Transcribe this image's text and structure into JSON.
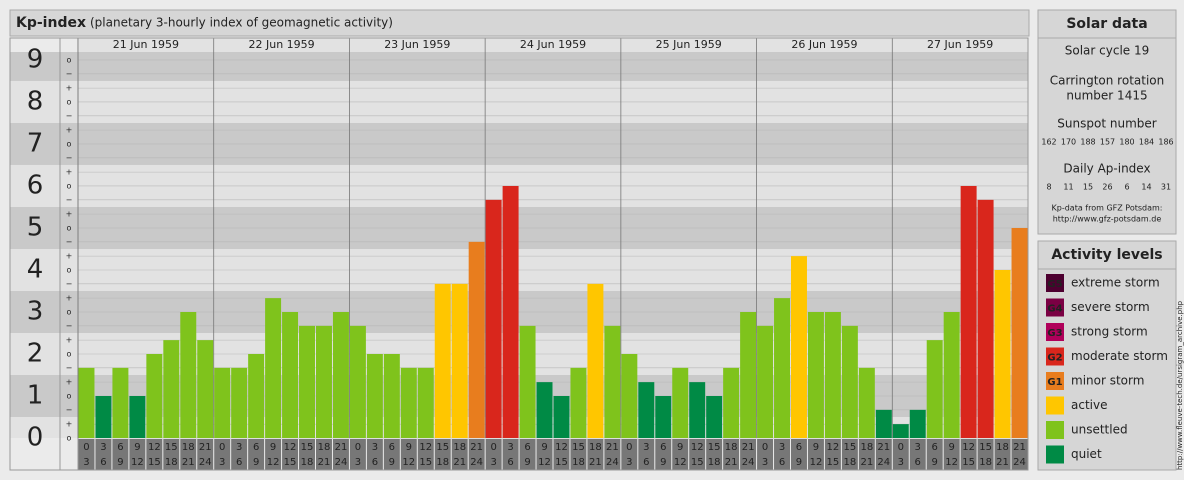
{
  "chart_data": {
    "type": "bar",
    "title": "Kp-index",
    "subtitle": "(planetary 3-hourly index of geomagnetic activity)",
    "days": [
      "21 Jun 1959",
      "22 Jun 1959",
      "23 Jun 1959",
      "24 Jun 1959",
      "25 Jun 1959",
      "26 Jun 1959",
      "27 Jun 1959"
    ],
    "hours_start": [
      "0",
      "3",
      "6",
      "9",
      "12",
      "15",
      "18",
      "21"
    ],
    "hours_end": [
      "3",
      "6",
      "9",
      "12",
      "15",
      "18",
      "21",
      "24"
    ],
    "values": [
      1.67,
      1,
      1.67,
      1,
      2,
      2.33,
      3,
      2.33,
      1.67,
      1.67,
      2,
      3.33,
      3,
      2.67,
      2.67,
      3,
      2.67,
      2,
      2,
      1.67,
      1.67,
      3.67,
      3.67,
      4.67,
      5.67,
      6,
      2.67,
      1.33,
      1,
      1.67,
      3.67,
      2.67,
      2,
      1.33,
      1,
      1.67,
      1.33,
      1,
      1.67,
      3,
      2.67,
      3.33,
      4.33,
      3,
      3,
      2.67,
      1.67,
      0.67,
      0.33,
      0.67,
      2.33,
      3,
      6,
      5.67,
      4,
      5
    ],
    "colors": [
      "#7fc31c",
      "#008a45",
      "#7fc31c",
      "#008a45",
      "#7fc31c",
      "#7fc31c",
      "#7fc31c",
      "#7fc31c",
      "#7fc31c",
      "#7fc31c",
      "#7fc31c",
      "#7fc31c",
      "#7fc31c",
      "#7fc31c",
      "#7fc31c",
      "#7fc31c",
      "#7fc31c",
      "#7fc31c",
      "#7fc31c",
      "#7fc31c",
      "#7fc31c",
      "#ffc600",
      "#ffc600",
      "#e87d1e",
      "#d9261c",
      "#d9261c",
      "#7fc31c",
      "#008a45",
      "#008a45",
      "#7fc31c",
      "#ffc600",
      "#7fc31c",
      "#7fc31c",
      "#008a45",
      "#008a45",
      "#7fc31c",
      "#008a45",
      "#008a45",
      "#7fc31c",
      "#7fc31c",
      "#7fc31c",
      "#7fc31c",
      "#ffc600",
      "#7fc31c",
      "#7fc31c",
      "#7fc31c",
      "#7fc31c",
      "#008a45",
      "#008a45",
      "#008a45",
      "#7fc31c",
      "#7fc31c",
      "#d9261c",
      "#d9261c",
      "#ffc600",
      "#e87d1e"
    ],
    "ylim": [
      0,
      9.19
    ],
    "yticks": [
      0,
      1,
      2,
      3,
      4,
      5,
      6,
      7,
      8,
      9
    ],
    "minor_yticks": [
      {
        "value": 0,
        "label": "o"
      },
      {
        "value": 0.33,
        "label": "+"
      },
      {
        "value": 0.67,
        "label": "−"
      },
      {
        "value": 1,
        "label": "o"
      },
      {
        "value": 1.33,
        "label": "+"
      },
      {
        "value": 1.67,
        "label": "−"
      },
      {
        "value": 2,
        "label": "o"
      },
      {
        "value": 2.33,
        "label": "+"
      },
      {
        "value": 2.67,
        "label": "−"
      },
      {
        "value": 3,
        "label": "o"
      },
      {
        "value": 3.33,
        "label": "+"
      },
      {
        "value": 3.67,
        "label": "−"
      },
      {
        "value": 4,
        "label": "o"
      },
      {
        "value": 4.33,
        "label": "+"
      },
      {
        "value": 4.67,
        "label": "−"
      },
      {
        "value": 5,
        "label": "o"
      },
      {
        "value": 5.33,
        "label": "+"
      },
      {
        "value": 5.67,
        "label": "−"
      },
      {
        "value": 6,
        "label": "o"
      },
      {
        "value": 6.33,
        "label": "+"
      },
      {
        "value": 6.67,
        "label": "−"
      },
      {
        "value": 7,
        "label": "o"
      },
      {
        "value": 7.33,
        "label": "+"
      },
      {
        "value": 7.67,
        "label": "−"
      },
      {
        "value": 8,
        "label": "o"
      },
      {
        "value": 8.33,
        "label": "+"
      },
      {
        "value": 8.67,
        "label": "−"
      },
      {
        "value": 9,
        "label": "o"
      }
    ]
  },
  "solar_data": {
    "title": "Solar data",
    "cycle": "Solar cycle 19",
    "carrington": [
      "Carrington rotation",
      "number 1415"
    ],
    "sunspot_label": "Sunspot number",
    "sunspot_numbers": [
      "162",
      "170",
      "188",
      "157",
      "180",
      "184",
      "186"
    ],
    "ap_label": "Daily Ap-index",
    "ap_values": [
      "8",
      "11",
      "15",
      "26",
      "6",
      "14",
      "31"
    ],
    "source": [
      "Kp-data from GFZ Potsdam:",
      "http://www.gfz-potsdam.de"
    ]
  },
  "activity_levels": {
    "title": "Activity levels",
    "items": [
      {
        "badge": "G5",
        "label": "extreme storm",
        "color": "#4d0030"
      },
      {
        "badge": "G4",
        "label": "severe storm",
        "color": "#7a0043"
      },
      {
        "badge": "G3",
        "label": "strong storm",
        "color": "#b0005a"
      },
      {
        "badge": "G2",
        "label": "moderate storm",
        "color": "#d9261c"
      },
      {
        "badge": "G1",
        "label": "minor storm",
        "color": "#e87d1e"
      },
      {
        "label": "active",
        "color": "#ffc600"
      },
      {
        "label": "unsettled",
        "color": "#7fc31c"
      },
      {
        "label": "quiet",
        "color": "#008a45"
      }
    ]
  },
  "watermark": "http://www.fleuve-tech.de/ursigram_archive.php"
}
